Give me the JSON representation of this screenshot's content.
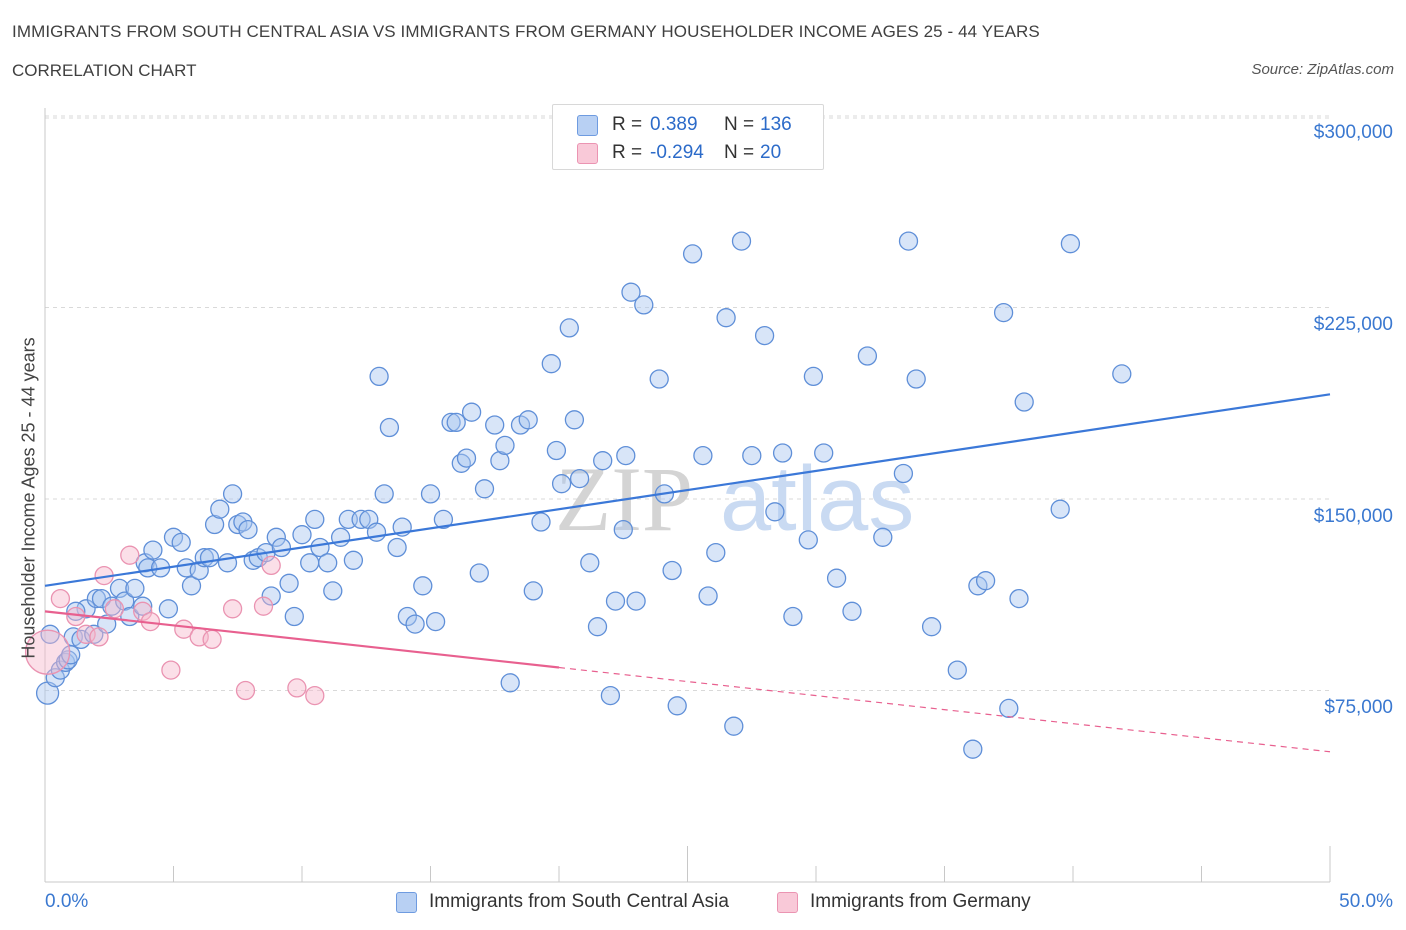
{
  "header": {
    "title": "IMMIGRANTS FROM SOUTH CENTRAL ASIA VS IMMIGRANTS FROM GERMANY HOUSEHOLDER INCOME AGES 25 - 44 YEARS",
    "subtitle": "CORRELATION CHART",
    "source": "Source: ZipAtlas.com"
  },
  "legend": {
    "r_label": "R =",
    "n_label": "N =",
    "series1": {
      "r": "0.389",
      "n": "136"
    },
    "series2": {
      "r": "-0.294",
      "n": "20"
    }
  },
  "watermark": {
    "zip": "ZIP",
    "atlas": "atlas"
  },
  "colors": {
    "blue": "#3b78d8",
    "blue_fill": "#a9c6f0",
    "pink": "#e8608f",
    "pink_fill": "#f6b9cd",
    "tick_text": "#3a78d0",
    "grid": "#d9d9d9"
  },
  "chart_data": {
    "type": "scatter",
    "title": "IMMIGRANTS FROM SOUTH CENTRAL ASIA VS IMMIGRANTS FROM GERMANY HOUSEHOLDER INCOME AGES 25 - 44 YEARS",
    "xlabel": "",
    "ylabel": "Householder Income Ages 25 - 44 years",
    "xlim": [
      0,
      50
    ],
    "ylim": [
      0,
      315000
    ],
    "x_tick_labels": [
      "0.0%",
      "50.0%"
    ],
    "y_ticks": [
      75000,
      150000,
      225000,
      300000
    ],
    "y_tick_labels": [
      "$75,000",
      "$150,000",
      "$225,000",
      "$300,000"
    ],
    "series": [
      {
        "name": "Immigrants from South Central Asia",
        "color": "#3b78d8",
        "trend": {
          "x": [
            0,
            50
          ],
          "y": [
            116000,
            191000
          ],
          "dashed_from": null
        },
        "points": [
          [
            0.1,
            74000
          ],
          [
            0.4,
            80000
          ],
          [
            0.6,
            83000
          ],
          [
            0.8,
            86000
          ],
          [
            0.9,
            87000
          ],
          [
            1.0,
            89000
          ],
          [
            1.1,
            96000
          ],
          [
            1.4,
            95000
          ],
          [
            1.6,
            107000
          ],
          [
            1.9,
            97000
          ],
          [
            2.0,
            111000
          ],
          [
            2.2,
            111000
          ],
          [
            2.4,
            101000
          ],
          [
            2.6,
            108000
          ],
          [
            2.9,
            115000
          ],
          [
            3.1,
            110000
          ],
          [
            3.3,
            104000
          ],
          [
            3.5,
            115000
          ],
          [
            3.8,
            108000
          ],
          [
            3.9,
            125000
          ],
          [
            4.0,
            123000
          ],
          [
            4.2,
            130000
          ],
          [
            4.5,
            123000
          ],
          [
            4.8,
            107000
          ],
          [
            5.0,
            135000
          ],
          [
            5.3,
            133000
          ],
          [
            5.5,
            123000
          ],
          [
            5.7,
            116000
          ],
          [
            6.0,
            122000
          ],
          [
            6.2,
            127000
          ],
          [
            6.4,
            127000
          ],
          [
            6.6,
            140000
          ],
          [
            6.8,
            146000
          ],
          [
            7.1,
            125000
          ],
          [
            7.3,
            152000
          ],
          [
            7.5,
            140000
          ],
          [
            7.7,
            141000
          ],
          [
            7.9,
            138000
          ],
          [
            8.1,
            126000
          ],
          [
            8.3,
            127000
          ],
          [
            8.6,
            129000
          ],
          [
            8.8,
            112000
          ],
          [
            9.0,
            135000
          ],
          [
            9.2,
            131000
          ],
          [
            9.5,
            117000
          ],
          [
            9.7,
            104000
          ],
          [
            10.0,
            136000
          ],
          [
            10.3,
            125000
          ],
          [
            10.5,
            142000
          ],
          [
            10.7,
            131000
          ],
          [
            11.0,
            125000
          ],
          [
            11.2,
            114000
          ],
          [
            11.5,
            135000
          ],
          [
            11.8,
            142000
          ],
          [
            12.0,
            126000
          ],
          [
            12.3,
            142000
          ],
          [
            12.6,
            142000
          ],
          [
            12.9,
            137000
          ],
          [
            13.0,
            198000
          ],
          [
            13.2,
            152000
          ],
          [
            13.4,
            178000
          ],
          [
            13.7,
            131000
          ],
          [
            13.9,
            139000
          ],
          [
            14.1,
            104000
          ],
          [
            14.4,
            101000
          ],
          [
            14.7,
            116000
          ],
          [
            15.0,
            152000
          ],
          [
            15.2,
            102000
          ],
          [
            15.5,
            142000
          ],
          [
            15.8,
            180000
          ],
          [
            16.0,
            180000
          ],
          [
            16.2,
            164000
          ],
          [
            16.4,
            166000
          ],
          [
            16.6,
            184000
          ],
          [
            16.9,
            121000
          ],
          [
            17.1,
            154000
          ],
          [
            17.5,
            179000
          ],
          [
            17.7,
            165000
          ],
          [
            17.9,
            171000
          ],
          [
            18.1,
            78000
          ],
          [
            18.5,
            179000
          ],
          [
            18.8,
            181000
          ],
          [
            19.0,
            114000
          ],
          [
            19.3,
            141000
          ],
          [
            19.7,
            203000
          ],
          [
            19.9,
            169000
          ],
          [
            20.1,
            156000
          ],
          [
            20.4,
            217000
          ],
          [
            20.6,
            181000
          ],
          [
            20.8,
            158000
          ],
          [
            21.2,
            125000
          ],
          [
            21.5,
            100000
          ],
          [
            21.7,
            165000
          ],
          [
            22.0,
            73000
          ],
          [
            22.2,
            110000
          ],
          [
            22.5,
            138000
          ],
          [
            22.6,
            167000
          ],
          [
            22.8,
            231000
          ],
          [
            23.0,
            110000
          ],
          [
            23.3,
            226000
          ],
          [
            23.9,
            197000
          ],
          [
            24.1,
            152000
          ],
          [
            24.4,
            122000
          ],
          [
            24.6,
            69000
          ],
          [
            25.2,
            246000
          ],
          [
            25.6,
            167000
          ],
          [
            25.8,
            112000
          ],
          [
            26.1,
            129000
          ],
          [
            26.5,
            221000
          ],
          [
            26.8,
            61000
          ],
          [
            27.1,
            251000
          ],
          [
            27.5,
            167000
          ],
          [
            28.0,
            214000
          ],
          [
            28.4,
            145000
          ],
          [
            28.7,
            168000
          ],
          [
            29.1,
            104000
          ],
          [
            29.7,
            134000
          ],
          [
            29.9,
            198000
          ],
          [
            30.3,
            168000
          ],
          [
            30.8,
            119000
          ],
          [
            31.4,
            106000
          ],
          [
            32.0,
            206000
          ],
          [
            32.6,
            135000
          ],
          [
            33.4,
            160000
          ],
          [
            33.6,
            251000
          ],
          [
            33.9,
            197000
          ],
          [
            34.5,
            100000
          ],
          [
            35.5,
            83000
          ],
          [
            36.1,
            52000
          ],
          [
            36.3,
            116000
          ],
          [
            36.6,
            118000
          ],
          [
            37.3,
            223000
          ],
          [
            37.5,
            68000
          ],
          [
            37.9,
            111000
          ],
          [
            38.1,
            188000
          ],
          [
            39.5,
            146000
          ],
          [
            39.9,
            250000
          ],
          [
            41.9,
            199000
          ],
          [
            0.2,
            97000
          ],
          [
            1.2,
            106000
          ]
        ]
      },
      {
        "name": "Immigrants from Germany",
        "color": "#e8608f",
        "trend": {
          "x": [
            0,
            50
          ],
          "y": [
            106000,
            51000
          ],
          "dashed_from": 20
        },
        "points": [
          [
            0.1,
            90000
          ],
          [
            0.6,
            111000
          ],
          [
            1.2,
            104000
          ],
          [
            1.6,
            97000
          ],
          [
            2.1,
            96000
          ],
          [
            2.3,
            120000
          ],
          [
            2.7,
            107000
          ],
          [
            3.3,
            128000
          ],
          [
            3.8,
            106000
          ],
          [
            4.1,
            102000
          ],
          [
            4.9,
            83000
          ],
          [
            5.4,
            99000
          ],
          [
            6.0,
            96000
          ],
          [
            6.5,
            95000
          ],
          [
            7.3,
            107000
          ],
          [
            7.8,
            75000
          ],
          [
            8.5,
            108000
          ],
          [
            8.8,
            124000
          ],
          [
            9.8,
            76000
          ],
          [
            10.5,
            73000
          ]
        ]
      }
    ]
  },
  "x_axis": {
    "min_label": "0.0%",
    "max_label": "50.0%"
  },
  "y_axis": {
    "label": "Householder Income Ages 25 - 44 years",
    "ticks": [
      "$300,000",
      "$225,000",
      "$150,000",
      "$75,000"
    ]
  },
  "bottom_legend": {
    "series1": "Immigrants from South Central Asia",
    "series2": "Immigrants from Germany"
  }
}
